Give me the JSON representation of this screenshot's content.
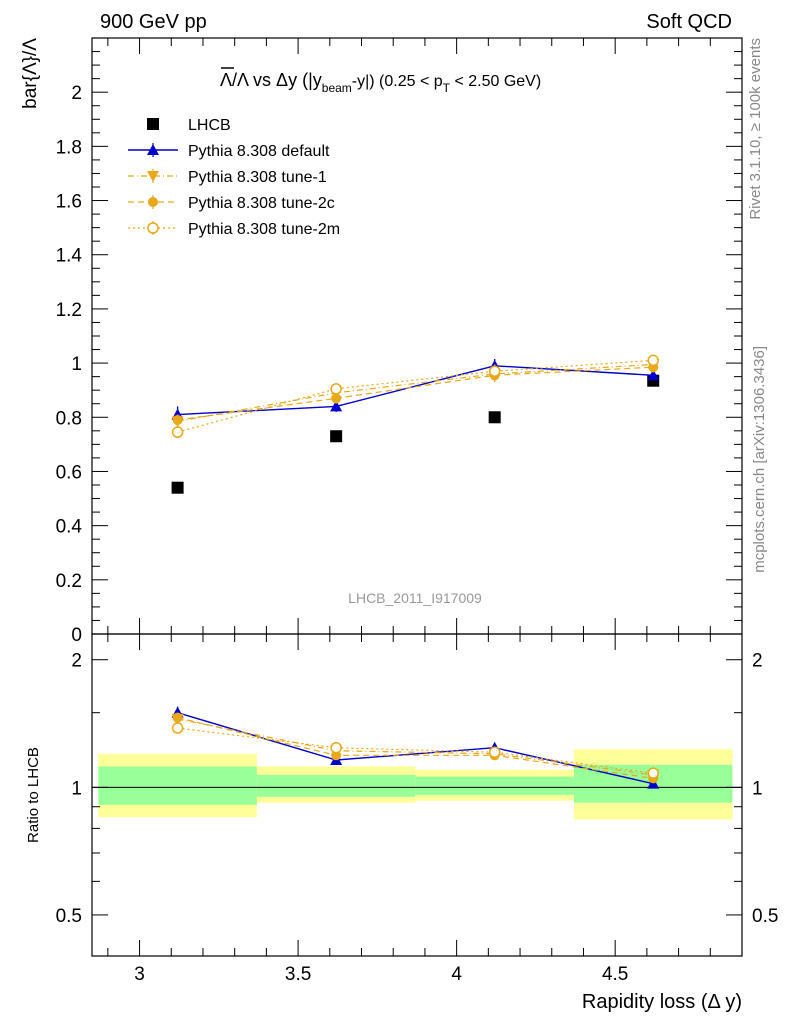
{
  "header": {
    "left": "900 GeV pp",
    "right": "Soft QCD"
  },
  "title": {
    "main": "Λ/Λ vs Δy (|y",
    "sub": "beam",
    "mid": "-y|) (0.25 < p",
    "sub2": "T",
    "end": " < 2.50 GeV)",
    "bar_char": "Λ"
  },
  "side_labels": {
    "rivet": "Rivet 3.1.10, ≥ 100k events",
    "mcplots": "mcplots.cern.ch [arXiv:1306.3436]"
  },
  "watermark": "LHCB_2011_I917009",
  "colors": {
    "data": "#000000",
    "default": "#0000cc",
    "tunes": "#e8a818",
    "band_inner": "#99ff99",
    "band_outer": "#ffff99"
  },
  "chart_data": [
    {
      "type": "scatter",
      "ylabel": "bar{Λ}/Λ",
      "xlim": [
        2.85,
        4.9
      ],
      "ylim": [
        0,
        2.2
      ],
      "yticks": [
        0,
        0.2,
        0.4,
        0.6,
        0.8,
        1,
        1.2,
        1.4,
        1.6,
        1.8,
        2
      ],
      "ytick_labels": [
        "0",
        "0.2",
        "0.4",
        "0.6",
        "0.8",
        "1",
        "1.2",
        "1.4",
        "1.6",
        "1.8",
        "2"
      ],
      "x": [
        3.12,
        3.62,
        4.12,
        4.62
      ],
      "legend_position": "top-left",
      "series": [
        {
          "name": "LHCB",
          "values": [
            0.54,
            0.73,
            0.8,
            0.935
          ],
          "marker": "square",
          "line": "none"
        },
        {
          "name": "Pythia 8.308 default",
          "values": [
            0.81,
            0.84,
            0.99,
            0.955
          ],
          "errors": [
            0.03,
            0.02,
            0.025,
            0.015
          ],
          "marker": "triangle-up",
          "line": "solid"
        },
        {
          "name": "Pythia 8.308 tune-1",
          "values": [
            0.785,
            0.89,
            0.96,
            0.995
          ],
          "errors": [
            0.02,
            0.02,
            0.025,
            0.02
          ],
          "marker": "triangle-down",
          "line": "dashdot"
        },
        {
          "name": "Pythia 8.308 tune-2c",
          "values": [
            0.79,
            0.87,
            0.955,
            0.985
          ],
          "errors": [
            0.02,
            0.02,
            0.025,
            0.02
          ],
          "marker": "circle",
          "line": "dashed"
        },
        {
          "name": "Pythia 8.308 tune-2m",
          "values": [
            0.745,
            0.905,
            0.97,
            1.01
          ],
          "errors": [
            0.02,
            0.02,
            0.025,
            0.02
          ],
          "marker": "circle-open",
          "line": "dotted"
        }
      ]
    },
    {
      "type": "scatter",
      "ylabel": "Ratio to LHCB",
      "xlabel": "Rapidity loss (Δ y)",
      "xlim": [
        2.85,
        4.9
      ],
      "ylim": [
        0.4,
        2.3
      ],
      "yscale": "log",
      "yticks": [
        0.5,
        1,
        2
      ],
      "ytick_labels": [
        "0.5",
        "1",
        "2"
      ],
      "xticks": [
        3,
        3.5,
        4,
        4.5
      ],
      "xtick_labels": [
        "3",
        "3.5",
        "4",
        "4.5"
      ],
      "x": [
        3.12,
        3.62,
        4.12,
        4.62
      ],
      "bands": [
        {
          "x0": 2.87,
          "x1": 3.37,
          "inner": [
            0.91,
            1.12
          ],
          "outer": [
            0.85,
            1.2
          ]
        },
        {
          "x0": 3.37,
          "x1": 3.87,
          "inner": [
            0.95,
            1.07
          ],
          "outer": [
            0.92,
            1.12
          ]
        },
        {
          "x0": 3.87,
          "x1": 4.37,
          "inner": [
            0.96,
            1.06
          ],
          "outer": [
            0.93,
            1.1
          ]
        },
        {
          "x0": 4.37,
          "x1": 4.87,
          "inner": [
            0.92,
            1.13
          ],
          "outer": [
            0.84,
            1.23
          ]
        }
      ],
      "series": [
        {
          "name": "Pythia 8.308 default",
          "values": [
            1.5,
            1.16,
            1.24,
            1.02
          ],
          "errors": [
            0.05,
            0.02,
            0.03,
            0.01
          ]
        },
        {
          "name": "Pythia 8.308 tune-1",
          "values": [
            1.45,
            1.22,
            1.2,
            1.07
          ],
          "errors": [
            0.04,
            0.03,
            0.03,
            0.02
          ]
        },
        {
          "name": "Pythia 8.308 tune-2c",
          "values": [
            1.46,
            1.19,
            1.19,
            1.05
          ],
          "errors": [
            0.04,
            0.03,
            0.03,
            0.02
          ]
        },
        {
          "name": "Pythia 8.308 tune-2m",
          "values": [
            1.38,
            1.24,
            1.21,
            1.08
          ],
          "errors": [
            0.04,
            0.03,
            0.03,
            0.02
          ]
        }
      ]
    }
  ]
}
